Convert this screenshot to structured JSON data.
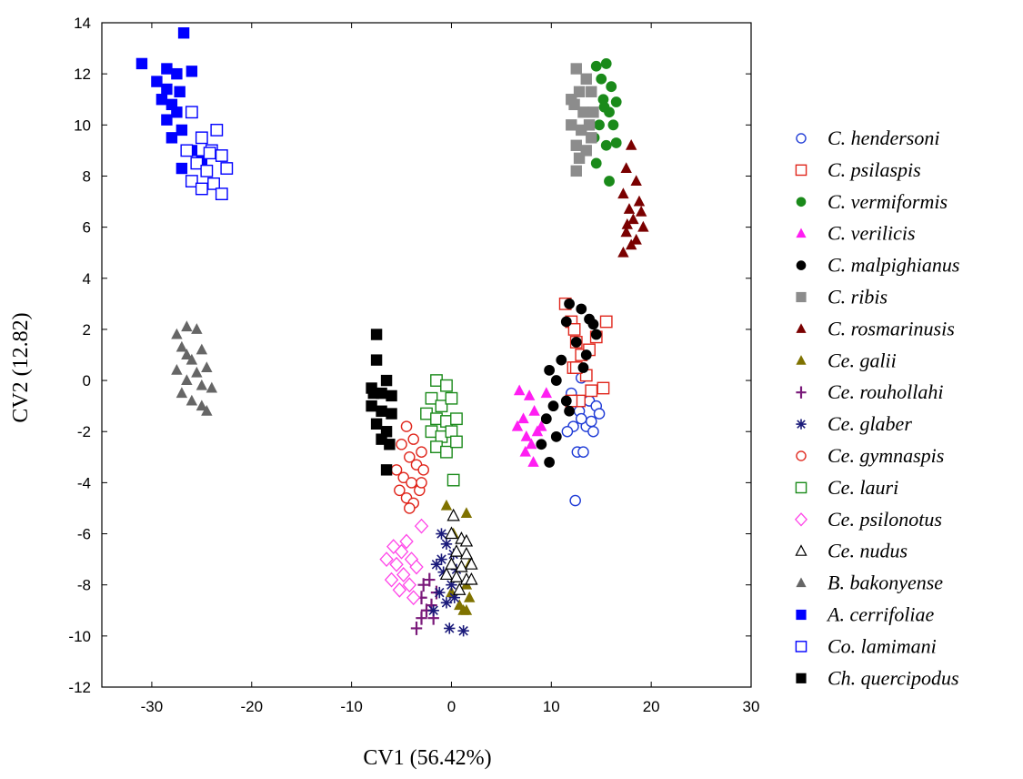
{
  "chart_data": {
    "type": "scatter",
    "xlabel": "CV1 (56.42%)",
    "ylabel": "CV2 (12.82)",
    "xlim": [
      -35,
      30
    ],
    "ylim": [
      -12,
      14
    ],
    "xticks": [
      -30,
      -20,
      -10,
      0,
      10,
      20,
      30
    ],
    "yticks": [
      -12,
      -10,
      -8,
      -6,
      -4,
      -2,
      0,
      2,
      4,
      6,
      8,
      10,
      12,
      14
    ],
    "grid": false,
    "legend_position": "right",
    "series": [
      {
        "name": "C. hendersoni",
        "marker": "circle-open",
        "color": "#1f3bd6",
        "points": [
          [
            12.0,
            -0.5
          ],
          [
            12.8,
            -1.2
          ],
          [
            13.5,
            -1.8
          ],
          [
            13.0,
            -1.5
          ],
          [
            14.0,
            -1.6
          ],
          [
            14.2,
            -2.0
          ],
          [
            12.6,
            -2.8
          ],
          [
            13.2,
            -2.8
          ],
          [
            12.4,
            -4.7
          ],
          [
            13.8,
            -0.8
          ],
          [
            14.5,
            -1.0
          ],
          [
            12.2,
            -1.8
          ],
          [
            11.6,
            -2.0
          ],
          [
            13.0,
            0.1
          ],
          [
            14.8,
            -1.3
          ]
        ]
      },
      {
        "name": "C. psilaspis",
        "marker": "square-open",
        "color": "#e0261c",
        "points": [
          [
            11.4,
            3.0
          ],
          [
            12.0,
            2.3
          ],
          [
            12.5,
            1.5
          ],
          [
            13.0,
            1.0
          ],
          [
            12.2,
            0.5
          ],
          [
            13.5,
            0.2
          ],
          [
            14.0,
            -0.4
          ],
          [
            12.8,
            -0.8
          ],
          [
            15.5,
            2.3
          ],
          [
            15.2,
            -0.3
          ],
          [
            14.5,
            1.7
          ],
          [
            12.0,
            -0.8
          ],
          [
            13.8,
            1.2
          ],
          [
            12.5,
            0.5
          ],
          [
            12.3,
            2.0
          ]
        ]
      },
      {
        "name": "C. vermiformis",
        "marker": "circle-filled",
        "color": "#1a8a1a",
        "points": [
          [
            14.5,
            12.3
          ],
          [
            15.5,
            12.4
          ],
          [
            15.0,
            11.8
          ],
          [
            16.0,
            11.5
          ],
          [
            15.2,
            11.0
          ],
          [
            16.5,
            10.9
          ],
          [
            15.8,
            10.5
          ],
          [
            16.2,
            10.0
          ],
          [
            14.8,
            10.0
          ],
          [
            15.5,
            9.2
          ],
          [
            14.3,
            9.5
          ],
          [
            16.5,
            9.3
          ],
          [
            14.5,
            8.5
          ],
          [
            15.8,
            7.8
          ],
          [
            15.3,
            10.7
          ]
        ]
      },
      {
        "name": "C. verilicis",
        "marker": "triangle-filled",
        "color": "#ff1ef2",
        "points": [
          [
            6.8,
            -0.4
          ],
          [
            7.8,
            -0.6
          ],
          [
            7.2,
            -1.5
          ],
          [
            8.3,
            -1.2
          ],
          [
            7.5,
            -2.2
          ],
          [
            8.6,
            -2.0
          ],
          [
            7.4,
            -2.8
          ],
          [
            8.2,
            -3.2
          ],
          [
            9.0,
            -1.8
          ],
          [
            9.5,
            -0.5
          ],
          [
            6.6,
            -1.8
          ],
          [
            8.0,
            -2.5
          ]
        ]
      },
      {
        "name": "C. malpighianus",
        "marker": "circle-filled",
        "color": "#000000",
        "points": [
          [
            11.8,
            3.0
          ],
          [
            13.0,
            2.8
          ],
          [
            13.8,
            2.4
          ],
          [
            14.2,
            2.2
          ],
          [
            11.5,
            2.3
          ],
          [
            12.5,
            1.5
          ],
          [
            13.5,
            1.0
          ],
          [
            14.5,
            1.8
          ],
          [
            13.2,
            0.5
          ],
          [
            11.0,
            0.8
          ],
          [
            10.5,
            0.0
          ],
          [
            9.8,
            0.4
          ],
          [
            11.5,
            -0.8
          ],
          [
            10.2,
            -1.0
          ],
          [
            9.5,
            -1.5
          ],
          [
            10.5,
            -2.2
          ],
          [
            9.0,
            -2.5
          ],
          [
            9.8,
            -3.2
          ],
          [
            11.8,
            -1.2
          ]
        ]
      },
      {
        "name": "C. ribis",
        "marker": "square-filled",
        "color": "#8c8c8c",
        "points": [
          [
            12.5,
            12.2
          ],
          [
            13.5,
            11.8
          ],
          [
            12.8,
            11.3
          ],
          [
            14.0,
            11.3
          ],
          [
            12.3,
            10.8
          ],
          [
            13.2,
            10.5
          ],
          [
            14.2,
            10.5
          ],
          [
            12.0,
            10.0
          ],
          [
            13.0,
            9.8
          ],
          [
            14.0,
            9.5
          ],
          [
            12.5,
            9.2
          ],
          [
            13.5,
            9.0
          ],
          [
            12.8,
            8.7
          ],
          [
            12.5,
            8.2
          ],
          [
            13.8,
            10.0
          ],
          [
            12.0,
            11.0
          ]
        ]
      },
      {
        "name": "C. rosmarinusis",
        "marker": "triangle-filled",
        "color": "#7a0000",
        "points": [
          [
            18.0,
            9.2
          ],
          [
            17.5,
            8.3
          ],
          [
            18.5,
            7.8
          ],
          [
            17.2,
            7.3
          ],
          [
            18.8,
            7.0
          ],
          [
            17.8,
            6.7
          ],
          [
            18.2,
            6.3
          ],
          [
            19.2,
            6.0
          ],
          [
            17.5,
            5.8
          ],
          [
            18.5,
            5.5
          ],
          [
            17.2,
            5.0
          ],
          [
            18.0,
            5.3
          ],
          [
            19.0,
            6.6
          ],
          [
            17.6,
            6.1
          ]
        ]
      },
      {
        "name": "Ce. galii",
        "marker": "triangle-filled",
        "color": "#7f7200",
        "points": [
          [
            -0.5,
            -4.9
          ],
          [
            1.5,
            -5.2
          ],
          [
            0.2,
            -6.0
          ],
          [
            1.8,
            -7.2
          ],
          [
            1.5,
            -8.0
          ],
          [
            1.8,
            -8.5
          ],
          [
            1.2,
            -9.0
          ],
          [
            0.8,
            -8.8
          ],
          [
            1.5,
            -9.0
          ],
          [
            0.0,
            -8.3
          ]
        ]
      },
      {
        "name": "Ce. rouhollahi",
        "marker": "plus",
        "color": "#7a1a7a",
        "points": [
          [
            -3.5,
            -9.7
          ],
          [
            -3.0,
            -9.3
          ],
          [
            -2.5,
            -9.0
          ],
          [
            -3.0,
            -8.5
          ],
          [
            -2.0,
            -8.8
          ],
          [
            -2.8,
            -8.0
          ],
          [
            -1.5,
            -8.3
          ],
          [
            -1.8,
            -9.3
          ],
          [
            -2.2,
            -7.8
          ]
        ]
      },
      {
        "name": "Ce. glaber",
        "marker": "asterisk",
        "color": "#1a1a7a",
        "points": [
          [
            -1.0,
            -6.0
          ],
          [
            -0.5,
            -6.4
          ],
          [
            0.2,
            -6.8
          ],
          [
            -1.5,
            -7.2
          ],
          [
            -0.8,
            -7.5
          ],
          [
            0.0,
            -8.0
          ],
          [
            -1.2,
            -8.3
          ],
          [
            -0.5,
            -8.7
          ],
          [
            0.3,
            -8.5
          ],
          [
            -1.8,
            -9.0
          ],
          [
            -0.2,
            -9.7
          ],
          [
            1.2,
            -9.8
          ],
          [
            -1.0,
            -7.0
          ],
          [
            0.5,
            -7.4
          ]
        ]
      },
      {
        "name": "Ce. gymnaspis",
        "marker": "circle-open",
        "color": "#e0261c",
        "points": [
          [
            -4.5,
            -1.8
          ],
          [
            -3.8,
            -2.3
          ],
          [
            -3.0,
            -2.8
          ],
          [
            -5.0,
            -2.5
          ],
          [
            -4.2,
            -3.0
          ],
          [
            -3.5,
            -3.3
          ],
          [
            -5.5,
            -3.5
          ],
          [
            -4.8,
            -3.8
          ],
          [
            -4.0,
            -4.0
          ],
          [
            -3.2,
            -4.3
          ],
          [
            -5.2,
            -4.3
          ],
          [
            -4.5,
            -4.6
          ],
          [
            -3.8,
            -4.8
          ],
          [
            -3.0,
            -4.0
          ],
          [
            -4.2,
            -5.0
          ],
          [
            -2.8,
            -3.5
          ]
        ]
      },
      {
        "name": "Ce. lauri",
        "marker": "square-open",
        "color": "#1a8a1a",
        "points": [
          [
            -1.5,
            0.0
          ],
          [
            -0.5,
            -0.2
          ],
          [
            -2.0,
            -0.7
          ],
          [
            -1.0,
            -1.0
          ],
          [
            0.0,
            -0.7
          ],
          [
            -2.5,
            -1.3
          ],
          [
            -1.5,
            -1.5
          ],
          [
            -0.5,
            -1.6
          ],
          [
            0.5,
            -1.5
          ],
          [
            -2.0,
            -2.0
          ],
          [
            -1.0,
            -2.2
          ],
          [
            0.0,
            -2.0
          ],
          [
            -1.5,
            -2.6
          ],
          [
            -0.5,
            -2.8
          ],
          [
            0.5,
            -2.4
          ],
          [
            0.2,
            -3.9
          ]
        ]
      },
      {
        "name": "Ce. psilonotus",
        "marker": "diamond-open",
        "color": "#ff44e8",
        "points": [
          [
            -3.0,
            -5.7
          ],
          [
            -4.5,
            -6.3
          ],
          [
            -5.0,
            -6.7
          ],
          [
            -4.0,
            -7.0
          ],
          [
            -5.5,
            -7.2
          ],
          [
            -6.5,
            -7.0
          ],
          [
            -3.5,
            -7.3
          ],
          [
            -4.8,
            -7.6
          ],
          [
            -6.0,
            -7.8
          ],
          [
            -4.2,
            -8.0
          ],
          [
            -5.2,
            -8.2
          ],
          [
            -3.8,
            -8.5
          ],
          [
            -5.8,
            -6.5
          ]
        ]
      },
      {
        "name": "Ce. nudus",
        "marker": "triangle-open",
        "color": "#000000",
        "points": [
          [
            0.2,
            -5.3
          ],
          [
            0.0,
            -6.0
          ],
          [
            1.0,
            -6.2
          ],
          [
            0.5,
            -6.7
          ],
          [
            1.5,
            -6.8
          ],
          [
            0.0,
            -7.2
          ],
          [
            1.0,
            -7.3
          ],
          [
            2.0,
            -7.2
          ],
          [
            0.5,
            -7.7
          ],
          [
            1.5,
            -7.8
          ],
          [
            -0.5,
            -7.6
          ],
          [
            0.8,
            -8.2
          ],
          [
            1.5,
            -6.3
          ],
          [
            2.0,
            -7.8
          ]
        ]
      },
      {
        "name": "B. bakonyense",
        "marker": "triangle-filled",
        "color": "#666666",
        "points": [
          [
            -27.5,
            1.8
          ],
          [
            -26.5,
            2.1
          ],
          [
            -25.5,
            2.0
          ],
          [
            -27.0,
            1.3
          ],
          [
            -25.0,
            1.2
          ],
          [
            -26.0,
            0.8
          ],
          [
            -27.5,
            0.4
          ],
          [
            -24.5,
            0.5
          ],
          [
            -26.5,
            0.0
          ],
          [
            -25.0,
            -0.2
          ],
          [
            -27.0,
            -0.5
          ],
          [
            -24.0,
            -0.3
          ],
          [
            -26.0,
            -0.8
          ],
          [
            -25.0,
            -1.0
          ],
          [
            -24.5,
            -1.2
          ],
          [
            -26.5,
            1.0
          ],
          [
            -25.5,
            0.3
          ]
        ]
      },
      {
        "name": "A. cerrifoliae",
        "marker": "square-filled",
        "color": "#0000ff",
        "points": [
          [
            -31.0,
            12.4
          ],
          [
            -28.5,
            12.2
          ],
          [
            -27.5,
            12.0
          ],
          [
            -26.0,
            12.1
          ],
          [
            -29.5,
            11.7
          ],
          [
            -28.5,
            11.4
          ],
          [
            -27.2,
            11.3
          ],
          [
            -29.0,
            11.0
          ],
          [
            -28.0,
            10.8
          ],
          [
            -27.5,
            10.5
          ],
          [
            -28.5,
            10.2
          ],
          [
            -27.0,
            9.8
          ],
          [
            -28.0,
            9.5
          ],
          [
            -26.0,
            9.0
          ],
          [
            -27.0,
            8.3
          ],
          [
            -25.0,
            8.6
          ],
          [
            -26.8,
            13.6
          ]
        ]
      },
      {
        "name": "Co. lamimani",
        "marker": "square-open",
        "color": "#0000ff",
        "points": [
          [
            -26.0,
            10.5
          ],
          [
            -23.5,
            9.8
          ],
          [
            -25.0,
            9.5
          ],
          [
            -24.0,
            9.0
          ],
          [
            -26.5,
            9.0
          ],
          [
            -23.0,
            8.8
          ],
          [
            -25.5,
            8.5
          ],
          [
            -22.5,
            8.3
          ],
          [
            -24.5,
            8.2
          ],
          [
            -26.0,
            7.8
          ],
          [
            -23.8,
            7.7
          ],
          [
            -25.0,
            7.5
          ],
          [
            -23.0,
            7.3
          ],
          [
            -24.2,
            8.9
          ]
        ]
      },
      {
        "name": "Ch. quercipodus",
        "marker": "square-filled",
        "color": "#000000",
        "points": [
          [
            -7.5,
            1.8
          ],
          [
            -7.5,
            0.8
          ],
          [
            -6.5,
            0.0
          ],
          [
            -8.0,
            -0.3
          ],
          [
            -7.0,
            -0.5
          ],
          [
            -6.0,
            -0.6
          ],
          [
            -8.0,
            -1.0
          ],
          [
            -7.0,
            -1.2
          ],
          [
            -6.0,
            -1.3
          ],
          [
            -7.5,
            -1.7
          ],
          [
            -6.5,
            -2.0
          ],
          [
            -7.0,
            -2.3
          ],
          [
            -6.2,
            -2.5
          ],
          [
            -6.5,
            -3.5
          ],
          [
            -7.8,
            -0.5
          ]
        ]
      }
    ]
  }
}
